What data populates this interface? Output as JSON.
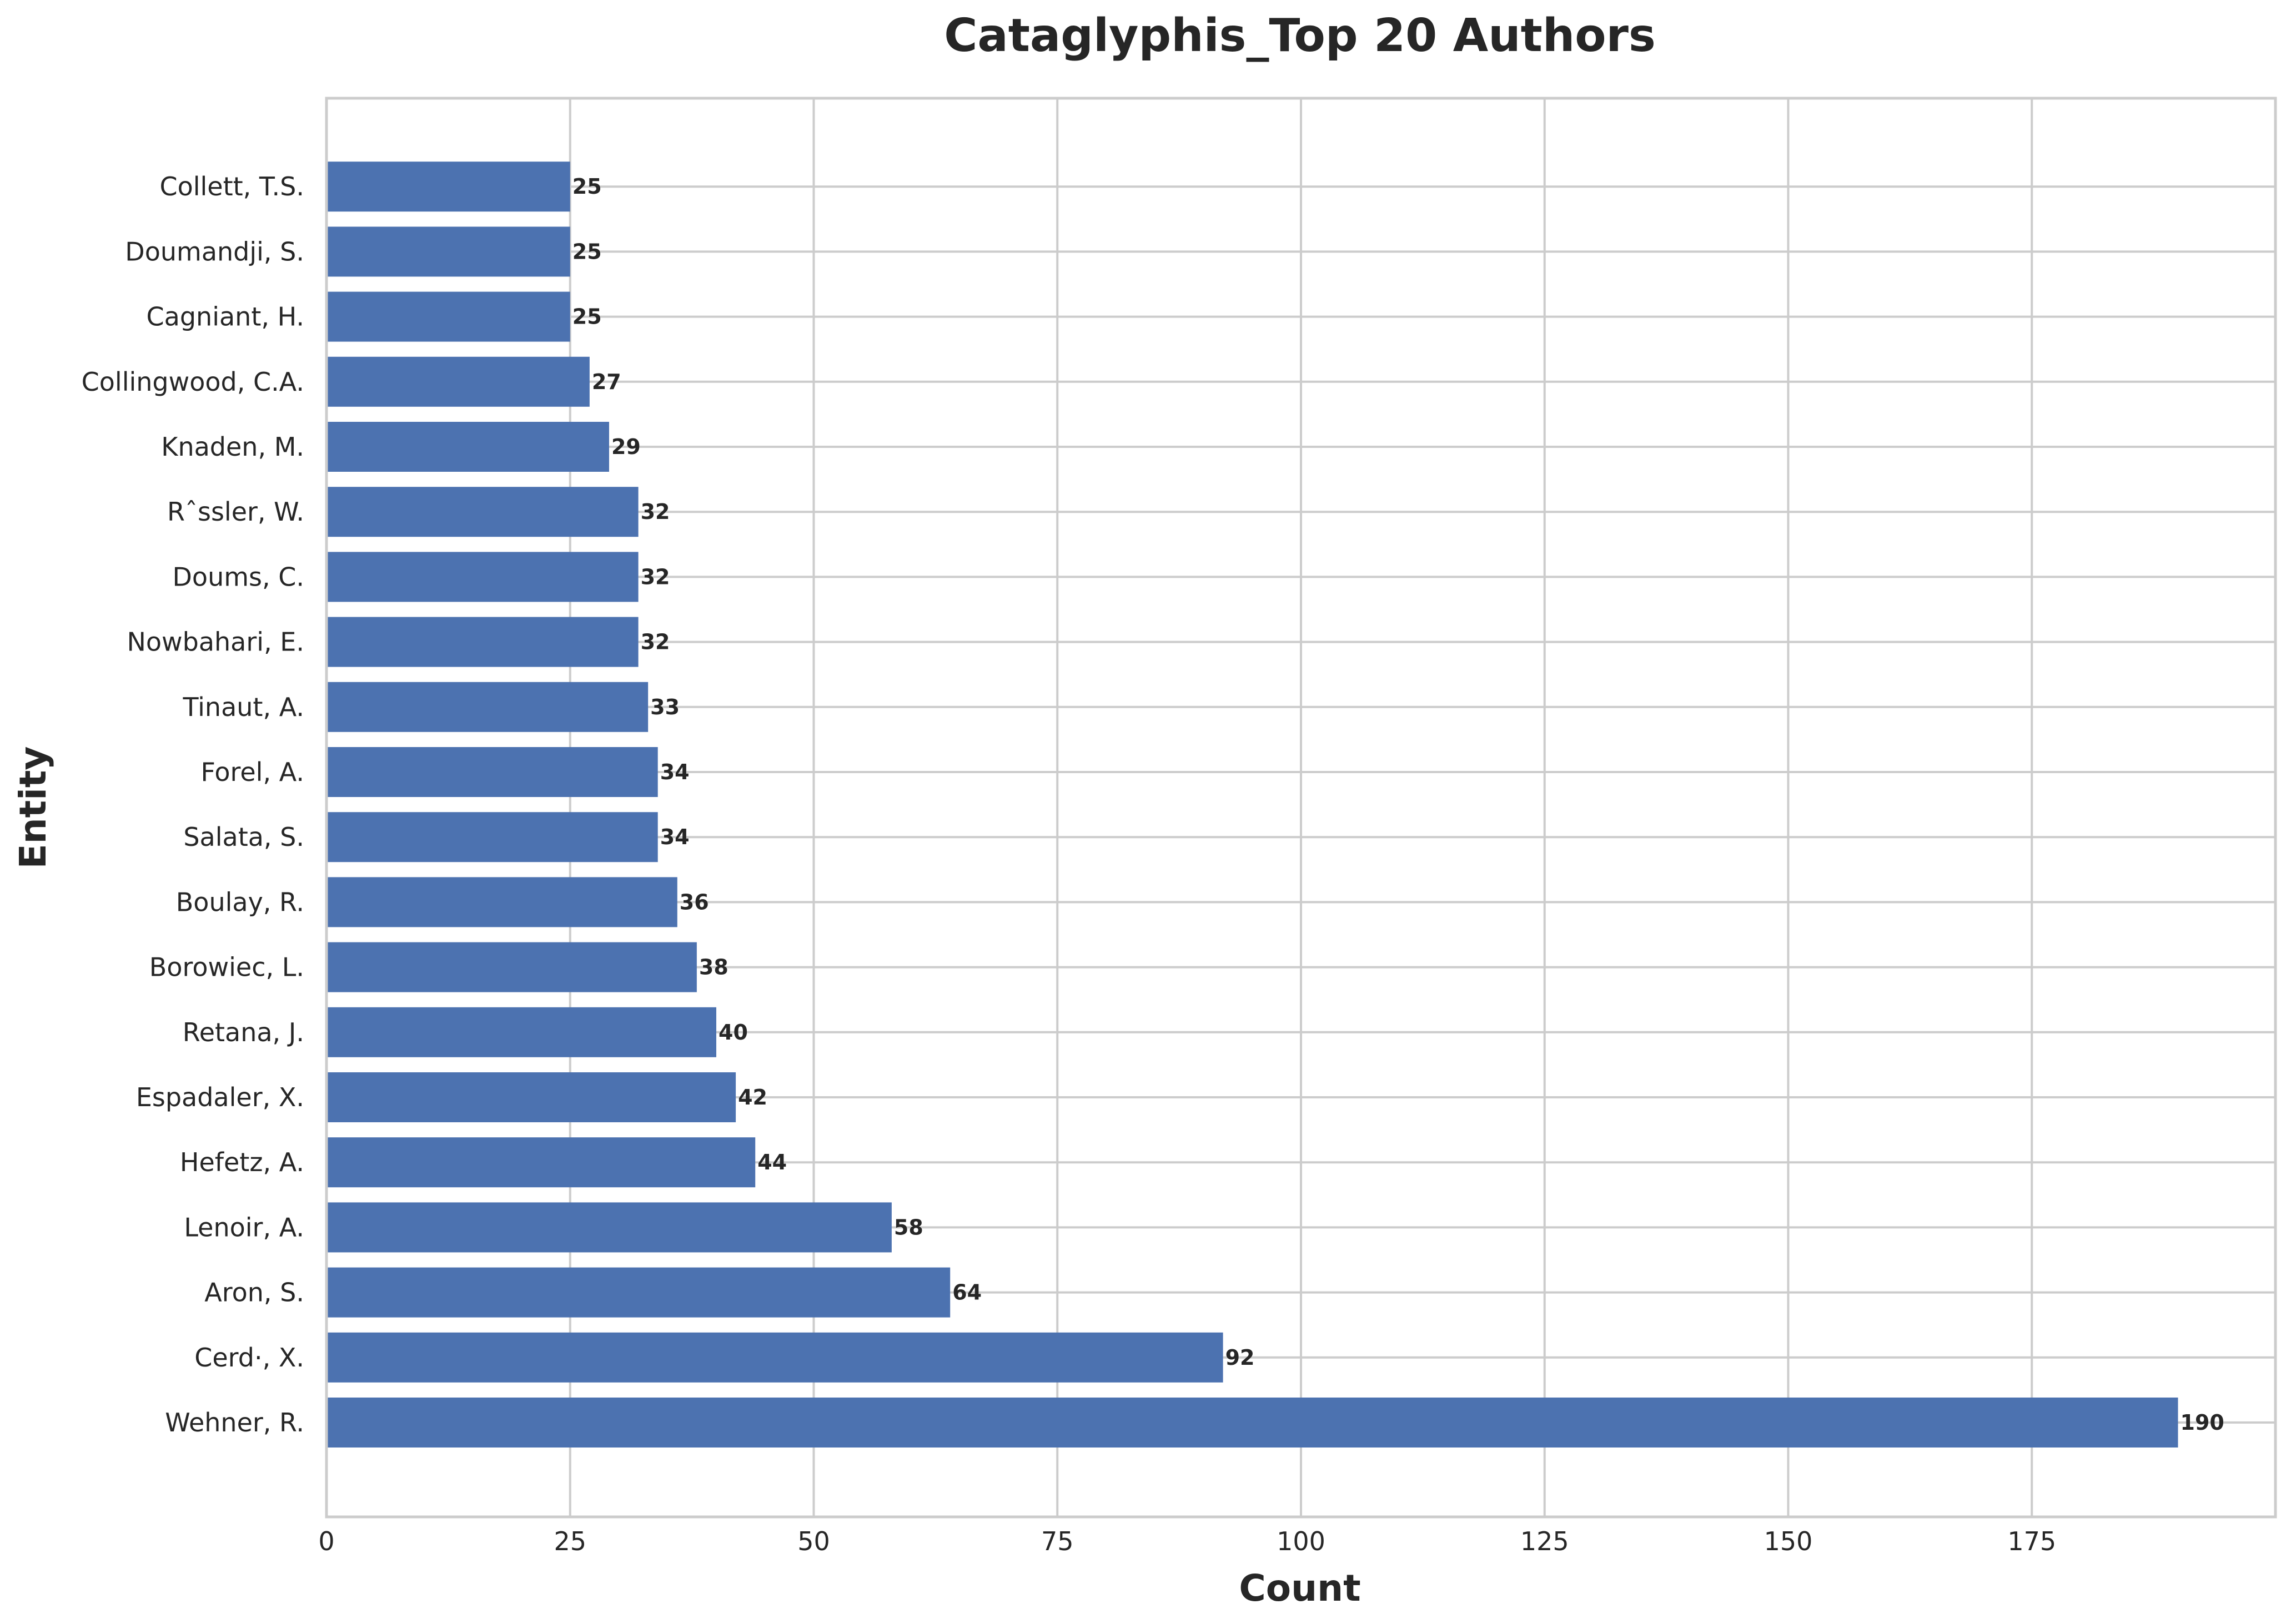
{
  "chart_data": {
    "type": "bar",
    "orientation": "horizontal",
    "title": "Cataglyphis_Top 20 Authors",
    "xlabel": "Count",
    "ylabel": "Entity",
    "xlim": [
      0,
      200
    ],
    "xticks": [
      0,
      25,
      50,
      75,
      100,
      125,
      150,
      175
    ],
    "grid": true,
    "bar_color": "#4c72b0",
    "categories": [
      "Wehner, R.",
      "Cerd·, X.",
      "Aron, S.",
      "Lenoir, A.",
      "Hefetz, A.",
      "Espadaler, X.",
      "Retana, J.",
      "Borowiec, L.",
      "Boulay, R.",
      "Salata, S.",
      "Forel, A.",
      "Tinaut, A.",
      "Nowbahari, E.",
      "Doums, C.",
      "Rˆssler, W.",
      "Knaden, M.",
      "Collingwood, C.A.",
      "Cagniant, H.",
      "Doumandji, S.",
      "Collett, T.S."
    ],
    "values": [
      190,
      92,
      64,
      58,
      44,
      42,
      40,
      38,
      36,
      34,
      34,
      33,
      32,
      32,
      32,
      29,
      27,
      25,
      25,
      25
    ]
  }
}
